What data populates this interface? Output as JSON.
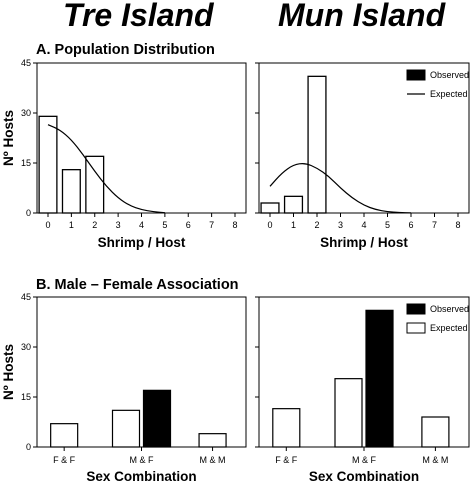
{
  "columns": [
    "Tre Island",
    "Mun Island"
  ],
  "sections": {
    "a": "A. Population Distribution",
    "b": "B. Male – Female Association"
  },
  "colors": {
    "observed": "#000000",
    "expected": "#ffffff",
    "stroke": "#000000"
  },
  "chart_data": [
    {
      "type": "bar",
      "panel": "A-Tre",
      "categories": [
        "0",
        "1",
        "2",
        "3",
        "4",
        "5",
        "6",
        "7",
        "8"
      ],
      "series": [
        {
          "name": "Observed",
          "values": [
            29,
            13,
            17,
            0,
            0,
            0,
            0,
            0,
            0
          ]
        },
        {
          "name": "Expected",
          "type": "line",
          "x": [
            0,
            0.5,
            1,
            1.5,
            2,
            2.5,
            3,
            3.5,
            4,
            4.5,
            5
          ],
          "values": [
            26.5,
            25,
            22,
            17.5,
            12.5,
            8,
            4.5,
            2.2,
            1.0,
            0.4,
            0.1
          ]
        }
      ],
      "xlabel": "Shrimp / Host",
      "ylabel": "Nº Hosts",
      "ylim": [
        0,
        45
      ],
      "yticks": [
        "0",
        "15",
        "30",
        "45"
      ]
    },
    {
      "type": "bar",
      "panel": "A-Mun",
      "categories": [
        "0",
        "1",
        "2",
        "3",
        "4",
        "5",
        "6",
        "7",
        "8"
      ],
      "series": [
        {
          "name": "Observed",
          "values": [
            3,
            5,
            41,
            0,
            0,
            0,
            0,
            0,
            0
          ]
        },
        {
          "name": "Expected",
          "type": "line",
          "x": [
            0,
            0.5,
            1,
            1.5,
            2,
            2.5,
            3,
            3.5,
            4,
            4.5,
            5,
            5.5,
            6
          ],
          "values": [
            8,
            12,
            14.5,
            15,
            13.5,
            11,
            7.5,
            4.5,
            2.3,
            1.0,
            0.4,
            0.15,
            0.05
          ]
        }
      ],
      "xlabel": "Shrimp / Host",
      "ylim": [
        0,
        45
      ],
      "legend": {
        "entries": [
          "Observed",
          "Expected"
        ],
        "position": "top-right"
      }
    },
    {
      "type": "bar",
      "panel": "B-Tre",
      "categories": [
        "F & F",
        "M & F",
        "M & M"
      ],
      "series": [
        {
          "name": "Expected",
          "values": [
            7,
            11,
            4
          ]
        },
        {
          "name": "Observed",
          "values": [
            0,
            17,
            0
          ]
        }
      ],
      "xlabel": "Sex Combination",
      "ylabel": "Nº Hosts",
      "ylim": [
        0,
        45
      ],
      "yticks": [
        "0",
        "15",
        "30",
        "45"
      ]
    },
    {
      "type": "bar",
      "panel": "B-Mun",
      "categories": [
        "F & F",
        "M & F",
        "M & M"
      ],
      "series": [
        {
          "name": "Expected",
          "values": [
            11.5,
            20.5,
            9
          ]
        },
        {
          "name": "Observed",
          "values": [
            0,
            41,
            0
          ]
        }
      ],
      "xlabel": "Sex Combination",
      "ylim": [
        0,
        45
      ],
      "legend": {
        "entries": [
          "Observed",
          "Expected"
        ],
        "position": "top-right"
      }
    }
  ]
}
